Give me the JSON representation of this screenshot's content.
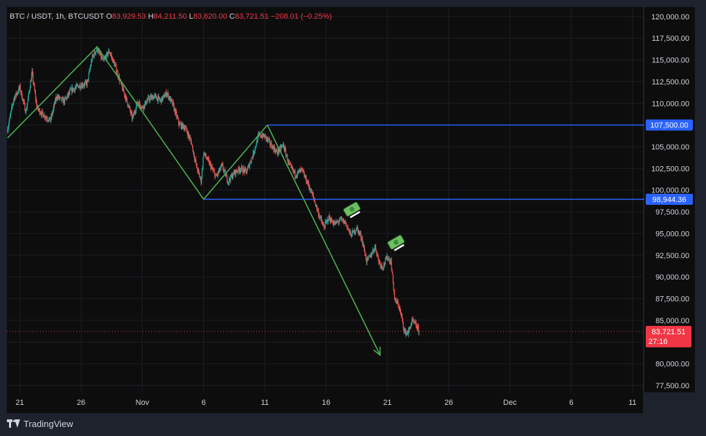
{
  "header": {
    "symbol": "BTC / USDT, 1h, BTCUSDT",
    "o_label": "O",
    "o_value": "83,929.53",
    "h_label": "H",
    "h_value": "84,211.50",
    "l_label": "L",
    "l_value": "83,620.00",
    "c_label": "C",
    "c_value": "83,721.51",
    "change": "−208.01 (−0.25%)"
  },
  "footer": {
    "brand": "TradingView"
  },
  "colors": {
    "up": "#26a69a",
    "down": "#ef5350",
    "line": "#4caf50",
    "level": "#2962ff",
    "price": "#f23645",
    "text": "#d1d4dc",
    "header_value": "#f23645"
  },
  "chart_data": {
    "type": "candlestick",
    "title": "",
    "y_ticks": [
      120000,
      117500,
      115000,
      112500,
      110000,
      107500,
      105000,
      102500,
      100000,
      97500,
      95000,
      92500,
      90000,
      87500,
      85000,
      82500,
      80000,
      77500
    ],
    "y_tick_labels": [
      "120,000.00",
      "117,500.00",
      "115,000.00",
      "112,500.00",
      "110,000.00",
      "107,500.00",
      "105,000.00",
      "102,500.00",
      "100,000.00",
      "97,500.00",
      "95,000.00",
      "92,500.00",
      "90,000.00",
      "87,500.00",
      "85,000.00",
      "82,500.00",
      "80,000.00",
      "77,500.00"
    ],
    "ylim": [
      76700,
      121100
    ],
    "x_ticks": [
      {
        "day": 21,
        "label": "21"
      },
      {
        "day": 26,
        "label": "26"
      },
      {
        "day": 31,
        "label": "Nov"
      },
      {
        "day": 36,
        "label": "6"
      },
      {
        "day": 41,
        "label": "11"
      },
      {
        "day": 46,
        "label": "16"
      },
      {
        "day": 51,
        "label": "21"
      },
      {
        "day": 56,
        "label": "26"
      },
      {
        "day": 61,
        "label": "Dec"
      },
      {
        "day": 66,
        "label": "6"
      },
      {
        "day": 71,
        "label": "11"
      }
    ],
    "xlim": [
      19.95,
      71.85
    ],
    "price_path": [
      [
        20.0,
        107000
      ],
      [
        20.5,
        110500
      ],
      [
        21.0,
        111800
      ],
      [
        21.5,
        109000
      ],
      [
        22.0,
        113500
      ],
      [
        22.4,
        109500
      ],
      [
        22.8,
        108800
      ],
      [
        23.5,
        108000
      ],
      [
        24.0,
        110800
      ],
      [
        24.6,
        110200
      ],
      [
        25.2,
        111500
      ],
      [
        25.8,
        112000
      ],
      [
        26.5,
        112300
      ],
      [
        26.9,
        115200
      ],
      [
        27.3,
        116300
      ],
      [
        27.8,
        114800
      ],
      [
        28.3,
        116000
      ],
      [
        28.8,
        114200
      ],
      [
        29.3,
        112000
      ],
      [
        29.8,
        110000
      ],
      [
        30.2,
        108200
      ],
      [
        30.6,
        110200
      ],
      [
        31.0,
        109500
      ],
      [
        31.5,
        110500
      ],
      [
        32.0,
        110800
      ],
      [
        32.5,
        110300
      ],
      [
        33.0,
        111200
      ],
      [
        33.5,
        109800
      ],
      [
        34.0,
        107600
      ],
      [
        34.5,
        107200
      ],
      [
        35.0,
        105500
      ],
      [
        35.4,
        102800
      ],
      [
        35.8,
        101000
      ],
      [
        36.0,
        104300
      ],
      [
        36.5,
        103000
      ],
      [
        37.0,
        101500
      ],
      [
        37.5,
        102800
      ],
      [
        38.0,
        101000
      ],
      [
        38.5,
        102000
      ],
      [
        39.0,
        102500
      ],
      [
        39.5,
        102100
      ],
      [
        40.0,
        104000
      ],
      [
        40.5,
        106300
      ],
      [
        41.0,
        106200
      ],
      [
        41.5,
        105200
      ],
      [
        42.0,
        104300
      ],
      [
        42.5,
        105200
      ],
      [
        43.0,
        102800
      ],
      [
        43.5,
        101800
      ],
      [
        44.0,
        102300
      ],
      [
        44.5,
        100800
      ],
      [
        45.0,
        99000
      ],
      [
        45.4,
        97200
      ],
      [
        45.8,
        95700
      ],
      [
        46.2,
        96800
      ],
      [
        46.7,
        96100
      ],
      [
        47.2,
        96600
      ],
      [
        47.6,
        96200
      ],
      [
        48.0,
        94800
      ],
      [
        48.5,
        95600
      ],
      [
        48.9,
        94500
      ],
      [
        49.3,
        91800
      ],
      [
        49.6,
        92400
      ],
      [
        50.0,
        93500
      ],
      [
        50.3,
        91800
      ],
      [
        50.6,
        91100
      ],
      [
        51.0,
        92300
      ],
      [
        51.3,
        91700
      ],
      [
        51.6,
        87300
      ],
      [
        51.9,
        86800
      ],
      [
        52.2,
        85100
      ],
      [
        52.4,
        83600
      ],
      [
        52.7,
        83600
      ],
      [
        53.0,
        84900
      ],
      [
        53.3,
        84500
      ],
      [
        53.6,
        83700
      ]
    ],
    "candle_seed": 7,
    "drawings": {
      "zigzag": [
        [
          20.0,
          106000
        ],
        [
          27.3,
          116500
        ],
        [
          36.0,
          98944
        ],
        [
          41.2,
          107500
        ]
      ],
      "arrow_line": [
        [
          41.2,
          107500
        ],
        [
          50.4,
          81000
        ]
      ],
      "levels": [
        {
          "value": 107500,
          "from_day": 41.2,
          "label": "107,500.00"
        },
        {
          "value": 98944.36,
          "from_day": 36.0,
          "label": "98,944.36"
        }
      ],
      "emoji_marks": [
        {
          "day": 48.1,
          "value": 97800
        },
        {
          "day": 51.7,
          "value": 94000
        }
      ]
    },
    "last_price": {
      "value": 83721.51,
      "label": "83,721.51",
      "countdown": "27:16"
    }
  }
}
